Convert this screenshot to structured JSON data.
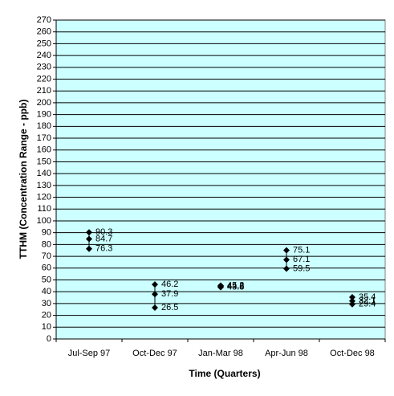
{
  "chart_data": {
    "type": "hilo",
    "x_label": "Time (Quarters)",
    "y_label": "TTHM (Concentration Range - ppb)",
    "categories": [
      "Jul-Sep 97",
      "Oct-Dec 97",
      "Jan-Mar 98",
      "Apr-Jun 98",
      "Oct-Dec 98"
    ],
    "series": [
      {
        "color": "#000000",
        "values": [
          90.3,
          46.2,
          45.2,
          75.1,
          35.4
        ]
      },
      {
        "color": "#000000",
        "values": [
          84.7,
          37.9,
          44.6,
          67.1,
          32.1
        ]
      },
      {
        "color": "#000000",
        "values": [
          76.3,
          26.5,
          43.8,
          59.5,
          29.4
        ]
      }
    ],
    "ylim": [
      0,
      270
    ],
    "yticks": [
      0,
      10,
      20,
      30,
      40,
      50,
      60,
      70,
      80,
      90,
      100,
      110,
      120,
      130,
      140,
      150,
      160,
      170,
      180,
      190,
      200,
      210,
      220,
      230,
      240,
      250,
      260,
      270
    ],
    "grid": true,
    "background": "#ccffff"
  }
}
